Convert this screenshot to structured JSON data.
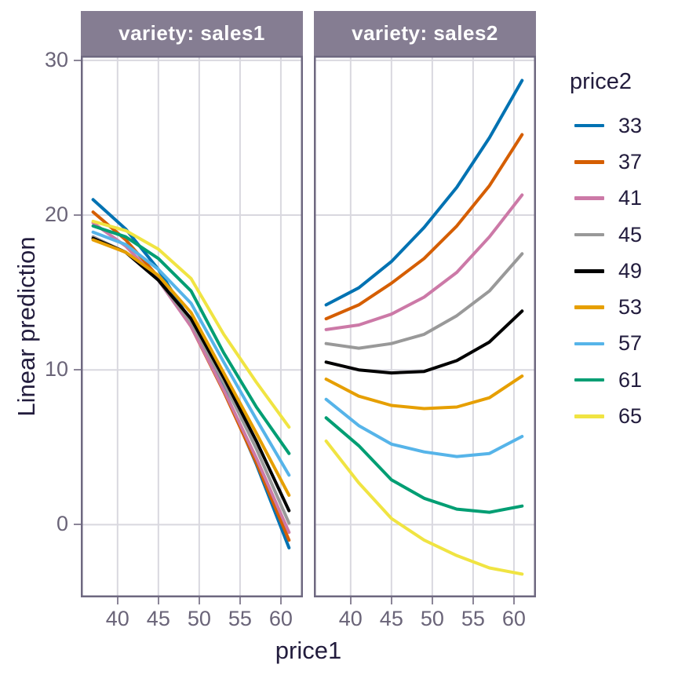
{
  "theme": {
    "background": "#FFFFFF",
    "strip_bg": "#857D92",
    "strip_text": "#FFFFFF",
    "panel_border": "#6E6880",
    "grid": "#D9D8DF",
    "tick": "#8B8597",
    "tick_label": "#6A6478",
    "axis_title": "#221C3D",
    "legend_text": "#221C3D",
    "line_width": 4
  },
  "chart_data": {
    "type": "line",
    "title": "",
    "xlabel": "price1",
    "ylabel": "Linear prediction",
    "x": [
      37,
      41,
      45,
      49,
      53,
      57,
      61
    ],
    "x_tick_labels": [
      "40",
      "45",
      "50",
      "55",
      "60"
    ],
    "x_tick_values": [
      40,
      45,
      50,
      55,
      60
    ],
    "y_tick_labels": [
      "0",
      "10",
      "20",
      "30"
    ],
    "y_tick_values": [
      0,
      10,
      20,
      30
    ],
    "x_domain": [
      35.5,
      62.7
    ],
    "y_domain": [
      -4.7,
      30.3
    ],
    "grid": true,
    "legend": {
      "title": "price2",
      "position": "right",
      "items": [
        {
          "label": "33",
          "color": "#0072B2"
        },
        {
          "label": "37",
          "color": "#D55E00"
        },
        {
          "label": "41",
          "color": "#CC79A7"
        },
        {
          "label": "45",
          "color": "#999999"
        },
        {
          "label": "49",
          "color": "#000000"
        },
        {
          "label": "53",
          "color": "#E69F00"
        },
        {
          "label": "57",
          "color": "#56B4E9"
        },
        {
          "label": "61",
          "color": "#009E73"
        },
        {
          "label": "65",
          "color": "#F0E442"
        }
      ]
    },
    "facets": [
      {
        "label": "variety: sales1",
        "series": [
          {
            "name": "33",
            "values": [
              21.0,
              19.1,
              16.5,
              13.1,
              8.8,
              3.9,
              -1.5
            ]
          },
          {
            "name": "37",
            "values": [
              20.2,
              18.4,
              16.0,
              12.8,
              8.6,
              4.0,
              -1.0
            ]
          },
          {
            "name": "41",
            "values": [
              19.5,
              18.0,
              15.8,
              12.8,
              8.7,
              4.3,
              -0.5
            ]
          },
          {
            "name": "45",
            "values": [
              18.6,
              17.6,
              15.8,
              13.1,
              9.2,
              4.9,
              0.1
            ]
          },
          {
            "name": "49",
            "values": [
              18.5,
              17.6,
              15.8,
              13.3,
              9.5,
              5.4,
              0.9
            ]
          },
          {
            "name": "53",
            "values": [
              18.4,
              17.6,
              16.1,
              13.7,
              9.8,
              5.9,
              1.9
            ]
          },
          {
            "name": "57",
            "values": [
              18.9,
              18.1,
              16.5,
              14.3,
              10.5,
              6.8,
              3.2
            ]
          },
          {
            "name": "61",
            "values": [
              19.3,
              18.6,
              17.2,
              15.1,
              11.1,
              7.6,
              4.6
            ]
          },
          {
            "name": "65",
            "values": [
              19.6,
              19.0,
              17.8,
              15.9,
              12.3,
              9.2,
              6.3
            ]
          }
        ]
      },
      {
        "label": "variety: sales2",
        "series": [
          {
            "name": "33",
            "values": [
              14.2,
              15.3,
              17.0,
              19.2,
              21.8,
              25.0,
              28.7
            ]
          },
          {
            "name": "37",
            "values": [
              13.3,
              14.2,
              15.6,
              17.2,
              19.3,
              21.9,
              25.2
            ]
          },
          {
            "name": "41",
            "values": [
              12.6,
              12.9,
              13.6,
              14.7,
              16.3,
              18.6,
              21.3
            ]
          },
          {
            "name": "45",
            "values": [
              11.7,
              11.4,
              11.7,
              12.3,
              13.5,
              15.1,
              17.5
            ]
          },
          {
            "name": "49",
            "values": [
              10.5,
              10.0,
              9.8,
              9.9,
              10.6,
              11.8,
              13.8
            ]
          },
          {
            "name": "53",
            "values": [
              9.4,
              8.3,
              7.7,
              7.5,
              7.6,
              8.2,
              9.6
            ]
          },
          {
            "name": "57",
            "values": [
              8.1,
              6.4,
              5.2,
              4.7,
              4.4,
              4.6,
              5.7
            ]
          },
          {
            "name": "61",
            "values": [
              6.9,
              5.1,
              2.9,
              1.7,
              1.0,
              0.8,
              1.2
            ]
          },
          {
            "name": "65",
            "values": [
              5.4,
              2.7,
              0.4,
              -1.0,
              -2.0,
              -2.8,
              -3.2
            ]
          }
        ]
      }
    ]
  }
}
